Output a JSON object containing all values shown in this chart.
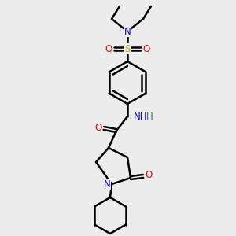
{
  "bg_color": "#ececec",
  "atom_colors": {
    "C": "#000000",
    "N": "#0000ff",
    "O": "#ff0000",
    "S": "#ccaa00",
    "H": "#008080"
  },
  "bond_color": "#000000",
  "bond_width": 1.8,
  "fig_size": [
    3.0,
    3.0
  ],
  "dpi": 100
}
